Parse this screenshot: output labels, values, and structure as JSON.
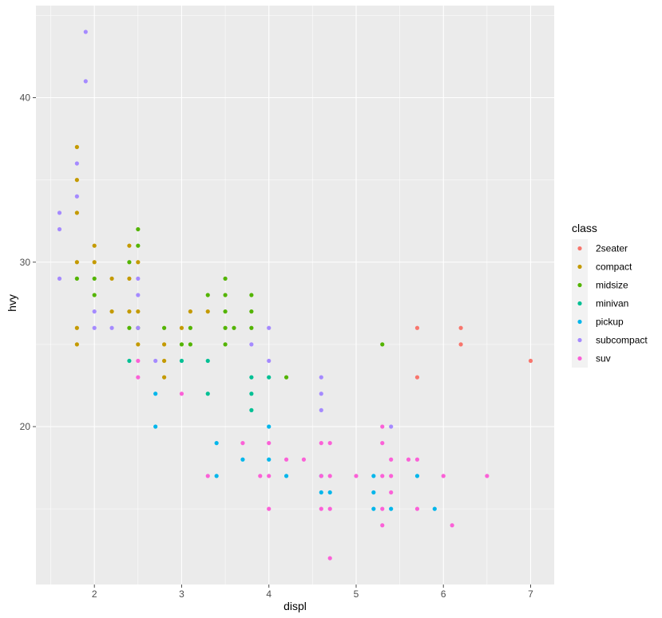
{
  "colors": {
    "panel_bg": "#EBEBEB",
    "grid_major": "#FFFFFF",
    "tick_color": "#4D4D4D"
  },
  "chart_data": {
    "type": "scatter",
    "xlabel": "displ",
    "ylabel": "hvy",
    "xlim": [
      1.33,
      7.27
    ],
    "ylim": [
      10.4,
      45.6
    ],
    "x_ticks": [
      2,
      3,
      4,
      5,
      6,
      7
    ],
    "y_ticks": [
      20,
      30,
      40
    ],
    "grid": true,
    "legend": {
      "title": "class",
      "position": "right"
    },
    "series": [
      {
        "name": "2seater",
        "color": "#F8766D",
        "points": [
          [
            5.7,
            26
          ],
          [
            5.7,
            23
          ],
          [
            6.2,
            26
          ],
          [
            6.2,
            25
          ],
          [
            7.0,
            24
          ]
        ]
      },
      {
        "name": "compact",
        "color": "#C49A00",
        "points": [
          [
            1.8,
            37
          ],
          [
            1.8,
            35
          ],
          [
            1.8,
            33
          ],
          [
            1.8,
            30
          ],
          [
            1.8,
            26
          ],
          [
            1.8,
            25
          ],
          [
            2.0,
            31
          ],
          [
            2.0,
            30
          ],
          [
            2.2,
            29
          ],
          [
            2.2,
            27
          ],
          [
            2.4,
            31
          ],
          [
            2.4,
            29
          ],
          [
            2.4,
            27
          ],
          [
            2.5,
            30
          ],
          [
            2.5,
            27
          ],
          [
            2.5,
            25
          ],
          [
            2.8,
            25
          ],
          [
            2.8,
            24
          ],
          [
            2.8,
            23
          ],
          [
            3.0,
            26
          ],
          [
            3.1,
            27
          ],
          [
            3.3,
            27
          ]
        ]
      },
      {
        "name": "midsize",
        "color": "#53B400",
        "points": [
          [
            1.8,
            29
          ],
          [
            2.0,
            29
          ],
          [
            2.0,
            28
          ],
          [
            2.4,
            30
          ],
          [
            2.4,
            26
          ],
          [
            2.5,
            32
          ],
          [
            2.5,
            31
          ],
          [
            2.5,
            26
          ],
          [
            2.8,
            26
          ],
          [
            3.0,
            25
          ],
          [
            3.1,
            26
          ],
          [
            3.1,
            25
          ],
          [
            3.3,
            28
          ],
          [
            3.5,
            29
          ],
          [
            3.5,
            28
          ],
          [
            3.5,
            27
          ],
          [
            3.5,
            26
          ],
          [
            3.5,
            25
          ],
          [
            3.6,
            26
          ],
          [
            3.8,
            28
          ],
          [
            3.8,
            27
          ],
          [
            3.8,
            26
          ],
          [
            4.2,
            23
          ],
          [
            5.3,
            25
          ]
        ]
      },
      {
        "name": "minivan",
        "color": "#00C094",
        "points": [
          [
            2.4,
            24
          ],
          [
            3.0,
            24
          ],
          [
            3.3,
            24
          ],
          [
            3.3,
            22
          ],
          [
            3.8,
            23
          ],
          [
            3.8,
            22
          ],
          [
            3.8,
            21
          ],
          [
            4.0,
            23
          ]
        ]
      },
      {
        "name": "pickup",
        "color": "#00B6EB",
        "points": [
          [
            2.7,
            22
          ],
          [
            2.7,
            20
          ],
          [
            3.4,
            19
          ],
          [
            3.4,
            17
          ],
          [
            3.7,
            18
          ],
          [
            4.0,
            20
          ],
          [
            4.0,
            18
          ],
          [
            4.2,
            17
          ],
          [
            4.6,
            17
          ],
          [
            4.6,
            16
          ],
          [
            4.7,
            16
          ],
          [
            5.2,
            17
          ],
          [
            5.2,
            16
          ],
          [
            5.2,
            15
          ],
          [
            5.4,
            15
          ],
          [
            5.7,
            17
          ],
          [
            5.9,
            15
          ]
        ]
      },
      {
        "name": "subcompact",
        "color": "#A58AFF",
        "points": [
          [
            1.6,
            33
          ],
          [
            1.6,
            32
          ],
          [
            1.6,
            29
          ],
          [
            1.8,
            36
          ],
          [
            1.8,
            34
          ],
          [
            1.9,
            44
          ],
          [
            1.9,
            41
          ],
          [
            2.0,
            27
          ],
          [
            2.0,
            26
          ],
          [
            2.2,
            26
          ],
          [
            2.5,
            29
          ],
          [
            2.5,
            28
          ],
          [
            2.5,
            26
          ],
          [
            2.7,
            24
          ],
          [
            3.8,
            25
          ],
          [
            4.0,
            26
          ],
          [
            4.0,
            24
          ],
          [
            4.6,
            23
          ],
          [
            4.6,
            22
          ],
          [
            4.6,
            21
          ],
          [
            5.4,
            20
          ]
        ]
      },
      {
        "name": "suv",
        "color": "#FB61D7",
        "points": [
          [
            2.5,
            24
          ],
          [
            2.5,
            23
          ],
          [
            3.0,
            22
          ],
          [
            3.3,
            17
          ],
          [
            3.7,
            19
          ],
          [
            3.9,
            17
          ],
          [
            4.0,
            19
          ],
          [
            4.0,
            17
          ],
          [
            4.0,
            15
          ],
          [
            4.2,
            18
          ],
          [
            4.4,
            18
          ],
          [
            4.6,
            19
          ],
          [
            4.6,
            17
          ],
          [
            4.6,
            15
          ],
          [
            4.7,
            19
          ],
          [
            4.7,
            17
          ],
          [
            4.7,
            15
          ],
          [
            4.7,
            12
          ],
          [
            5.0,
            17
          ],
          [
            5.3,
            20
          ],
          [
            5.3,
            19
          ],
          [
            5.3,
            17
          ],
          [
            5.3,
            15
          ],
          [
            5.3,
            14
          ],
          [
            5.4,
            18
          ],
          [
            5.4,
            17
          ],
          [
            5.4,
            16
          ],
          [
            5.6,
            18
          ],
          [
            5.7,
            18
          ],
          [
            5.7,
            15
          ],
          [
            6.0,
            17
          ],
          [
            6.1,
            14
          ],
          [
            6.5,
            17
          ]
        ]
      }
    ]
  }
}
